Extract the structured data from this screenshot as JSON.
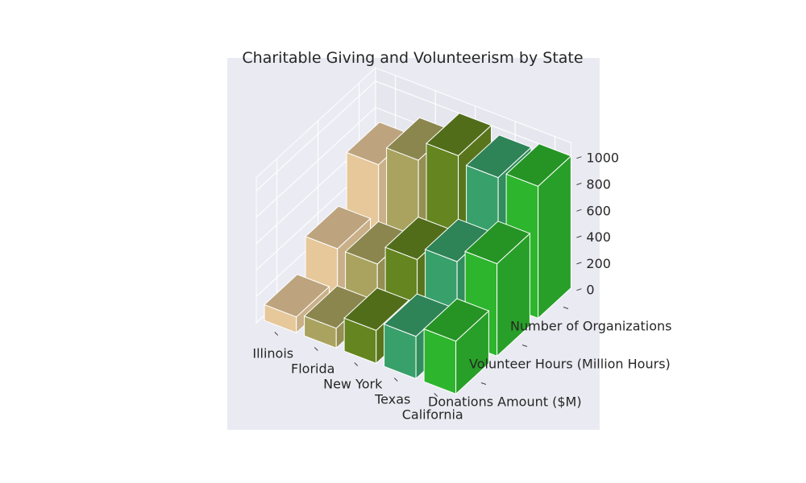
{
  "chart_data": {
    "type": "bar",
    "subtype": "3d-bar",
    "title": "Charitable Giving and Volunteerism by State",
    "categories": [
      "Illinois",
      "Florida",
      "New York",
      "Texas",
      "California"
    ],
    "series": [
      {
        "name": "Donations Amount ($M)",
        "values": [
          120,
          150,
          250,
          320,
          400
        ]
      },
      {
        "name": "Volunteer Hours (Million Hours)",
        "values": [
          350,
          350,
          500,
          600,
          700
        ]
      },
      {
        "name": "Number of Organizations",
        "values": [
          700,
          850,
          1000,
          950,
          1000
        ]
      }
    ],
    "z_ticks": [
      "0",
      "200",
      "400",
      "600",
      "800",
      "1000"
    ],
    "zlim": [
      0,
      1100
    ],
    "grid": true,
    "state_colors": [
      "#e6c89a",
      "#a9a35f",
      "#648520",
      "#38a06a",
      "#2db52d"
    ]
  }
}
